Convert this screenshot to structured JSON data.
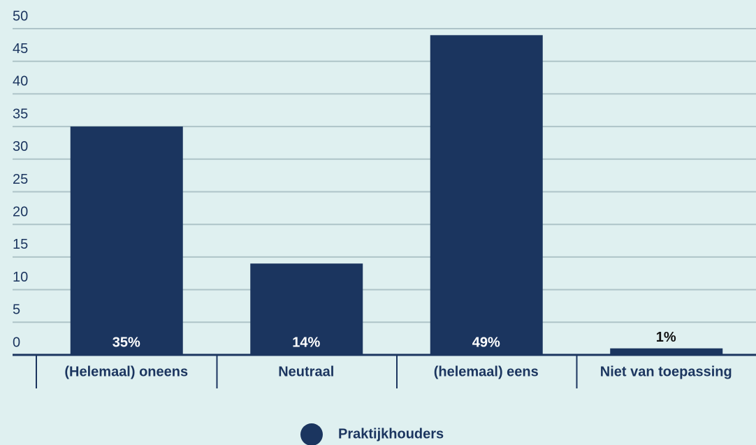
{
  "chart_data": {
    "type": "bar",
    "categories": [
      "(Helemaal) oneens",
      "Neutraal",
      "(helemaal) eens",
      "Niet van toepassing"
    ],
    "series": [
      {
        "name": "Praktijkhouders",
        "color": "#1b355f",
        "values": [
          35,
          14,
          49,
          1
        ],
        "value_labels": [
          "35%",
          "14%",
          "49%",
          "1%"
        ]
      }
    ],
    "ylim": [
      0,
      50
    ],
    "yticks": [
      0,
      5,
      10,
      15,
      20,
      25,
      30,
      35,
      40,
      45,
      50
    ],
    "grid": true,
    "legend": "bottom"
  }
}
